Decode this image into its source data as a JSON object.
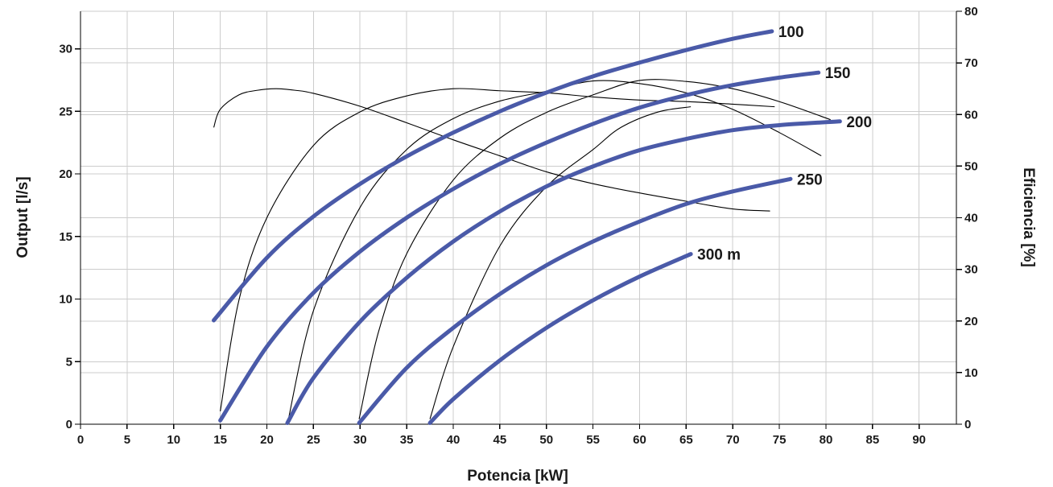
{
  "chart_data": {
    "type": "line",
    "xlabel": "Potencia [kW]",
    "ylabel": "Output [l/s]",
    "y2label": "Eficiencia [%]",
    "xlim": [
      0,
      94
    ],
    "ylim": [
      0,
      33
    ],
    "y2lim": [
      0,
      80
    ],
    "xticks": [
      0,
      5,
      10,
      15,
      20,
      25,
      30,
      35,
      40,
      45,
      50,
      55,
      60,
      65,
      70,
      75,
      80,
      85,
      90
    ],
    "yticks": [
      0,
      5,
      10,
      15,
      20,
      25,
      30
    ],
    "y2ticks": [
      0,
      10,
      20,
      30,
      40,
      50,
      60,
      70,
      80
    ],
    "grid": true,
    "colors": {
      "output": "#4a5aa8",
      "efficiency": "#000000"
    },
    "output_series": [
      {
        "name": "100",
        "axis": "left",
        "x": [
          14.3,
          20,
          25,
          30,
          35,
          40,
          45,
          50,
          55,
          60,
          65,
          70,
          74.2
        ],
        "y": [
          8.3,
          13.3,
          16.6,
          19.2,
          21.4,
          23.3,
          25.0,
          26.5,
          27.8,
          28.9,
          29.9,
          30.8,
          31.4
        ]
      },
      {
        "name": "150",
        "axis": "left",
        "x": [
          15,
          20,
          25,
          30,
          35,
          40,
          45,
          50,
          55,
          60,
          65,
          70,
          75,
          79.2
        ],
        "y": [
          0.3,
          6.2,
          10.5,
          13.8,
          16.5,
          18.8,
          20.8,
          22.5,
          24.0,
          25.3,
          26.3,
          27.1,
          27.7,
          28.1
        ]
      },
      {
        "name": "200",
        "axis": "left",
        "x": [
          22.2,
          25,
          30,
          35,
          40,
          45,
          50,
          55,
          60,
          65,
          70,
          75,
          81.5
        ],
        "y": [
          0.1,
          3.7,
          8.2,
          11.7,
          14.6,
          17.0,
          19.0,
          20.6,
          21.9,
          22.8,
          23.5,
          23.9,
          24.2
        ]
      },
      {
        "name": "250",
        "axis": "left",
        "x": [
          29.9,
          35,
          40,
          45,
          50,
          55,
          60,
          65,
          70,
          76.2
        ],
        "y": [
          0.1,
          4.5,
          7.7,
          10.4,
          12.7,
          14.6,
          16.2,
          17.6,
          18.6,
          19.6
        ]
      },
      {
        "name": "300 m",
        "axis": "left",
        "x": [
          37.5,
          40,
          45,
          50,
          55,
          60,
          65.5
        ],
        "y": [
          0.1,
          2.0,
          5.1,
          7.7,
          9.9,
          11.8,
          13.6
        ]
      }
    ],
    "efficiency_series": [
      {
        "axis": "right",
        "x": [
          14.3,
          15,
          17,
          19,
          21,
          23,
          25,
          30,
          35,
          40,
          45,
          50,
          55,
          60,
          65,
          70,
          74
        ],
        "y": [
          57.5,
          61,
          63.8,
          64.7,
          65,
          64.7,
          64.1,
          61.6,
          58.4,
          55.1,
          52,
          48.9,
          46.6,
          44.8,
          43.2,
          41.7,
          41.3
        ]
      },
      {
        "axis": "right",
        "x": [
          15,
          17,
          20,
          25,
          30,
          35,
          40,
          45,
          50,
          55,
          60,
          65,
          70,
          74.5
        ],
        "y": [
          2.5,
          24,
          40,
          54,
          60.5,
          63.6,
          65,
          64.6,
          64.2,
          63.4,
          62.8,
          62.5,
          62,
          61.5
        ]
      },
      {
        "axis": "right",
        "x": [
          22.2,
          25,
          30,
          35,
          40,
          45,
          50,
          55,
          60,
          65,
          70,
          75,
          79.5
        ],
        "y": [
          0,
          22,
          42,
          53.2,
          59.2,
          62.6,
          64.5,
          66.5,
          66,
          64.2,
          61,
          56.5,
          52
        ]
      },
      {
        "axis": "right",
        "x": [
          29.9,
          32,
          35,
          40,
          45,
          50,
          55,
          60,
          65,
          70,
          75,
          80.5
        ],
        "y": [
          1,
          18,
          33,
          47.3,
          55.4,
          60.4,
          63.8,
          66.6,
          66.4,
          65,
          62.5,
          59
        ]
      },
      {
        "axis": "right",
        "x": [
          37.5,
          40,
          45,
          50,
          55,
          58,
          62,
          65.5
        ],
        "y": [
          1,
          15,
          34.5,
          46,
          53.2,
          57.5,
          60.5,
          61.5
        ]
      }
    ]
  }
}
